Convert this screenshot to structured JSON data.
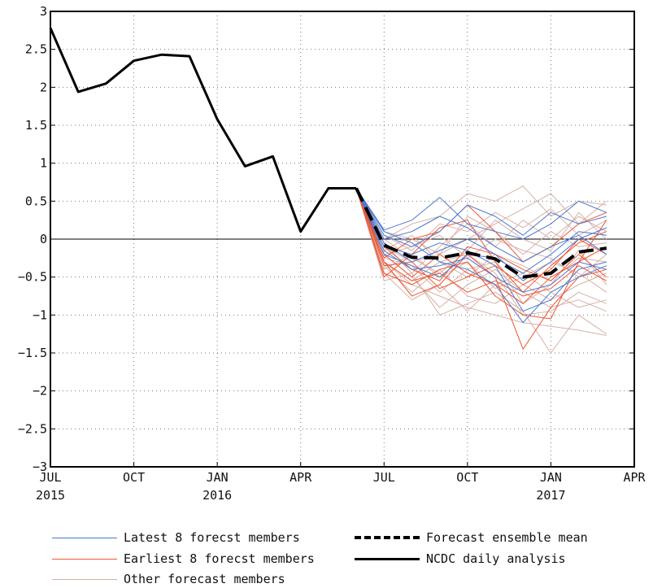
{
  "chart_data": {
    "type": "line",
    "title": "",
    "xlabel": "",
    "ylabel": "",
    "ylim": [
      -3,
      3
    ],
    "yticks": [
      3,
      2.5,
      2,
      1.5,
      1,
      0.5,
      0,
      -0.5,
      -1,
      -1.5,
      -2,
      -2.5,
      -3
    ],
    "ytick_labels": [
      "3",
      "2.5",
      "2",
      "1.5",
      "1",
      "0.5",
      "0",
      "−0.5",
      "−1",
      "−1.5",
      "−2",
      "−2.5",
      "−3"
    ],
    "xlim": [
      "2015-07",
      "2017-04"
    ],
    "xticks": [
      {
        "date": "2015-07",
        "label": "JUL",
        "year": "2015"
      },
      {
        "date": "2015-10",
        "label": "OCT",
        "year": ""
      },
      {
        "date": "2016-01",
        "label": "JAN",
        "year": "2016"
      },
      {
        "date": "2016-04",
        "label": "APR",
        "year": ""
      },
      {
        "date": "2016-07",
        "label": "JUL",
        "year": ""
      },
      {
        "date": "2016-10",
        "label": "OCT",
        "year": ""
      },
      {
        "date": "2017-01",
        "label": "JAN",
        "year": "2017"
      },
      {
        "date": "2017-04",
        "label": "APR",
        "year": ""
      }
    ],
    "grid": true,
    "zero_line": true,
    "legend_placement": "bottom",
    "series": [
      {
        "name": "NCDC daily analysis",
        "role": "analysis",
        "color": "#000000",
        "dates": [
          "2015-07",
          "2015-08",
          "2015-09",
          "2015-10",
          "2015-11",
          "2015-12",
          "2016-01",
          "2016-02",
          "2016-03",
          "2016-04",
          "2016-05",
          "2016-06"
        ],
        "values": [
          2.78,
          1.94,
          2.05,
          2.35,
          2.43,
          2.41,
          1.58,
          0.96,
          1.09,
          0.1,
          0.67,
          0.67
        ]
      },
      {
        "name": "Forecast ensemble mean",
        "role": "mean",
        "color": "#000000",
        "dates": [
          "2016-06",
          "2016-07",
          "2016-08",
          "2016-09",
          "2016-10",
          "2016-11",
          "2016-12",
          "2017-01",
          "2017-02",
          "2017-03"
        ],
        "values": [
          0.67,
          -0.08,
          -0.24,
          -0.25,
          -0.18,
          -0.26,
          -0.5,
          -0.45,
          -0.17,
          -0.12
        ]
      },
      {
        "name": "Latest 8 forecast members",
        "role": "members",
        "color": "#4a77d0",
        "dates": [
          "2016-06",
          "2016-07",
          "2016-08",
          "2016-09",
          "2016-10",
          "2016-11",
          "2016-12",
          "2017-01",
          "2017-02",
          "2017-03"
        ],
        "members": [
          [
            0.67,
            0.12,
            0.25,
            0.55,
            0.2,
            0.1,
            0.0,
            0.2,
            0.5,
            0.35
          ],
          [
            0.67,
            0.05,
            -0.1,
            0.1,
            0.45,
            0.3,
            0.05,
            0.35,
            0.2,
            0.3
          ],
          [
            0.67,
            -0.05,
            -0.3,
            -0.15,
            0.0,
            -0.2,
            -0.55,
            -0.3,
            0.0,
            0.15
          ],
          [
            0.67,
            0.0,
            0.1,
            0.3,
            0.15,
            -0.1,
            -0.3,
            -0.1,
            0.05,
            -0.2
          ],
          [
            0.67,
            -0.15,
            -0.4,
            -0.35,
            -0.25,
            -0.5,
            -0.7,
            -0.6,
            -0.3,
            -0.4
          ],
          [
            0.67,
            -0.1,
            -0.2,
            -0.05,
            -0.15,
            -0.35,
            -0.95,
            -0.8,
            -0.4,
            -0.3
          ],
          [
            0.67,
            0.1,
            -0.05,
            -0.3,
            -0.4,
            -0.6,
            -1.1,
            -0.7,
            -0.5,
            -0.35
          ],
          [
            0.67,
            -0.2,
            -0.35,
            -0.5,
            -0.2,
            -0.25,
            -0.45,
            -0.2,
            0.1,
            0.05
          ]
        ]
      },
      {
        "name": "Earliest 8 forecst members",
        "role": "members",
        "color": "#ee5533",
        "dates": [
          "2016-06",
          "2016-07",
          "2016-08",
          "2016-09",
          "2016-10",
          "2016-11",
          "2016-12",
          "2017-01",
          "2017-02",
          "2017-03"
        ],
        "members": [
          [
            0.67,
            -0.3,
            -0.75,
            -0.6,
            -0.2,
            -0.5,
            -1.45,
            -0.9,
            -0.5,
            -0.4
          ],
          [
            0.67,
            -0.25,
            0.0,
            0.1,
            0.45,
            0.1,
            -0.3,
            -0.1,
            0.2,
            0.35
          ],
          [
            0.67,
            -0.45,
            -0.6,
            -0.4,
            -0.3,
            -0.75,
            -1.0,
            -1.05,
            -0.3,
            0.25
          ],
          [
            0.67,
            -0.2,
            -0.5,
            -0.2,
            -0.45,
            -0.6,
            -0.85,
            -0.5,
            -0.3,
            -0.1
          ],
          [
            0.67,
            -0.35,
            -0.3,
            -0.65,
            -0.5,
            -0.35,
            -0.6,
            -0.4,
            0.0,
            -0.2
          ],
          [
            0.67,
            -0.1,
            -0.4,
            -0.55,
            -0.1,
            -0.2,
            -0.4,
            -0.55,
            -0.2,
            -0.5
          ],
          [
            0.67,
            -0.5,
            -0.2,
            0.15,
            0.25,
            -0.3,
            -0.7,
            -0.35,
            -0.05,
            0.1
          ],
          [
            0.67,
            -0.3,
            -0.55,
            -0.45,
            -0.7,
            -0.55,
            -0.75,
            -0.65,
            -0.35,
            -0.55
          ]
        ]
      },
      {
        "name": "Other forecast members",
        "role": "members",
        "color": "#d8b0a8",
        "dates": [
          "2016-06",
          "2016-07",
          "2016-08",
          "2016-09",
          "2016-10",
          "2016-11",
          "2016-12",
          "2017-01",
          "2017-02",
          "2017-03"
        ],
        "members": [
          [
            0.67,
            -0.55,
            -0.45,
            -1.0,
            -0.85,
            -0.7,
            -0.95,
            -1.5,
            -1.0,
            -1.25
          ],
          [
            0.67,
            0.0,
            0.2,
            0.3,
            0.6,
            0.5,
            0.7,
            0.3,
            0.5,
            0.45
          ],
          [
            0.67,
            -0.3,
            -0.6,
            -0.75,
            -0.9,
            -1.0,
            -1.1,
            -1.15,
            -1.2,
            -1.27
          ],
          [
            0.67,
            -0.1,
            -0.3,
            -0.2,
            0.0,
            0.2,
            0.4,
            0.6,
            0.2,
            0.5
          ],
          [
            0.67,
            -0.2,
            -0.5,
            -0.9,
            -0.6,
            -0.4,
            -0.7,
            -0.9,
            -0.8,
            -0.95
          ],
          [
            0.67,
            0.1,
            0.0,
            -0.2,
            0.3,
            0.1,
            -0.2,
            0.1,
            -0.1,
            -0.05
          ],
          [
            0.67,
            -0.4,
            -0.2,
            -0.5,
            -0.3,
            -0.65,
            -0.5,
            -0.3,
            -0.45,
            -0.7
          ],
          [
            0.67,
            -0.05,
            -0.45,
            -0.1,
            0.2,
            -0.1,
            0.25,
            0.0,
            0.3,
            0.1
          ],
          [
            0.67,
            -0.35,
            -0.7,
            -0.4,
            -0.75,
            -0.85,
            -0.6,
            -0.8,
            -0.6,
            -0.45
          ],
          [
            0.67,
            -0.15,
            0.05,
            -0.3,
            -0.5,
            -0.2,
            -0.35,
            -0.55,
            -0.25,
            -0.3
          ],
          [
            0.67,
            -0.25,
            -0.35,
            -0.7,
            -0.4,
            -0.3,
            -0.85,
            -0.6,
            -0.15,
            -0.6
          ],
          [
            0.67,
            0.05,
            -0.15,
            0.2,
            0.1,
            0.35,
            0.15,
            0.4,
            0.05,
            0.25
          ],
          [
            0.67,
            -0.45,
            -0.8,
            -0.6,
            -0.95,
            -0.6,
            -0.45,
            -0.7,
            -0.9,
            -0.8
          ],
          [
            0.67,
            -0.2,
            -0.1,
            0.05,
            -0.25,
            0.0,
            -0.15,
            -0.25,
            -0.5,
            -0.2
          ],
          [
            0.67,
            -0.3,
            -0.55,
            -0.3,
            -0.2,
            -0.45,
            -1.0,
            -0.95,
            -0.7,
            -0.85
          ],
          [
            0.67,
            0.0,
            -0.25,
            -0.45,
            -0.15,
            0.25,
            0.0,
            -0.15,
            0.35,
            0.0
          ]
        ]
      }
    ],
    "legend": [
      {
        "label": "Latest 8 forecst members",
        "style": "line",
        "color": "#4a77d0"
      },
      {
        "label": "Earliest 8 forecst members",
        "style": "line",
        "color": "#ee5533"
      },
      {
        "label": "Other forecast members",
        "style": "line",
        "color": "#d8b0a8"
      },
      {
        "label": "Forecast ensemble mean",
        "style": "dashed",
        "color": "#000000"
      },
      {
        "label": "NCDC daily analysis",
        "style": "solid",
        "color": "#000000"
      }
    ]
  }
}
